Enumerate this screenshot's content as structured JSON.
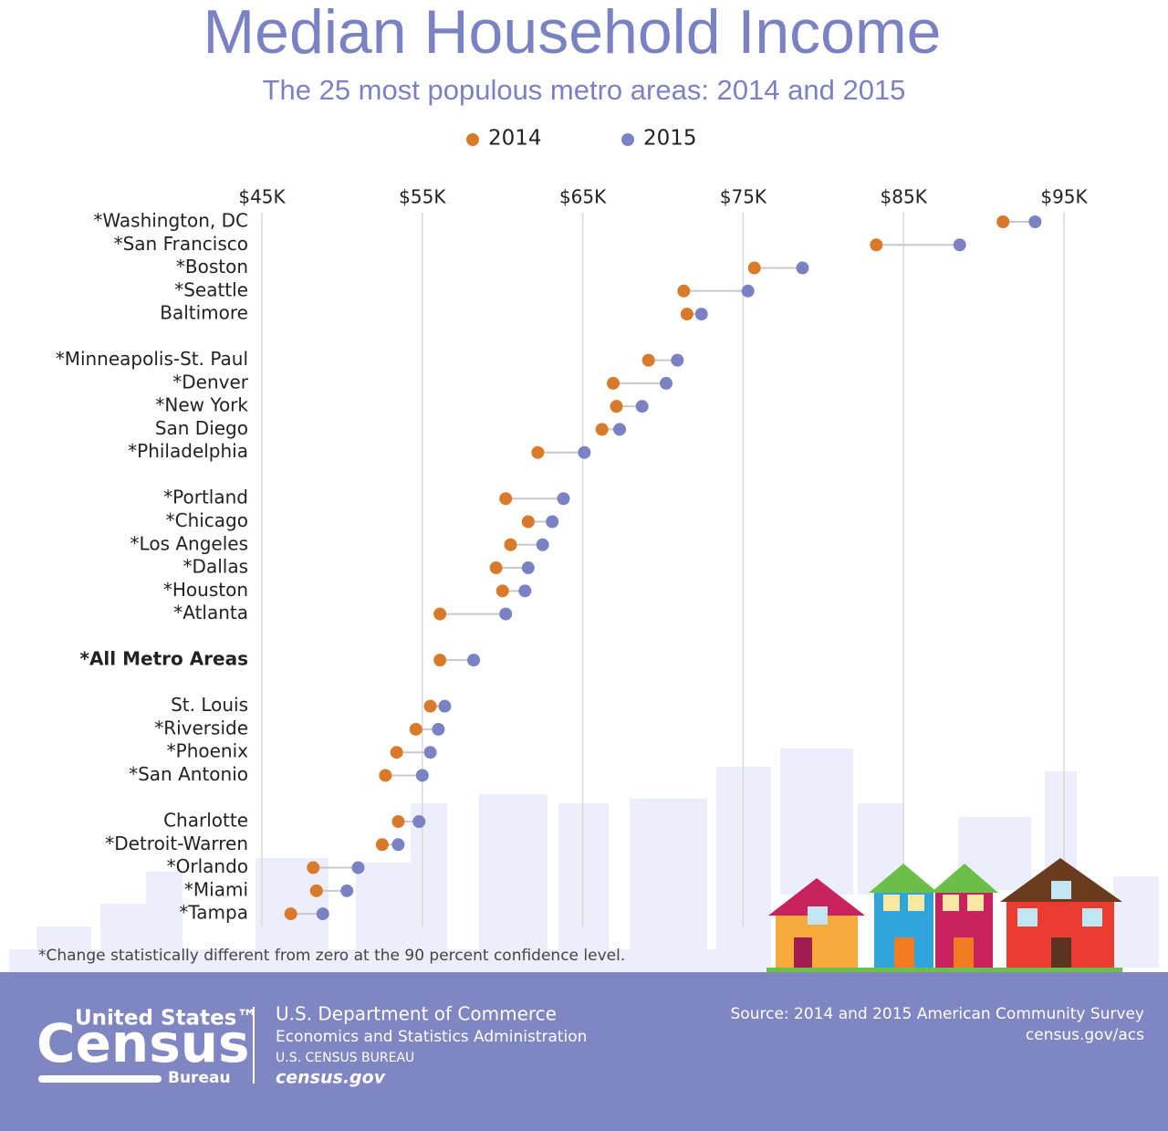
{
  "chart_data": {
    "type": "dumbbell",
    "title": "Median Household Income",
    "subtitle": "The 25 most populous metro areas: 2014 and 2015",
    "categories": [
      "*Washington, DC",
      "*San Francisco",
      "*Boston",
      "*Seattle",
      "Baltimore",
      "*Minneapolis-St. Paul",
      "*Denver",
      "*New York",
      "San Diego",
      "*Philadelphia",
      "*Portland",
      "*Chicago",
      "*Los Angeles",
      "*Dallas",
      "*Houston",
      "*Atlanta",
      "*All Metro Areas",
      "St. Louis",
      "*Riverside",
      "*Phoenix",
      "*San Antonio",
      "Charlotte",
      "*Detroit-Warren",
      "*Orlando",
      "*Miami",
      "*Tampa"
    ],
    "series": [
      {
        "name": "2014",
        "color": "#d97a2b",
        "values": [
          91.2,
          83.3,
          75.7,
          71.3,
          71.5,
          69.1,
          66.9,
          67.1,
          66.2,
          62.2,
          60.2,
          61.6,
          60.5,
          59.6,
          60.0,
          56.1,
          56.1,
          55.5,
          54.6,
          53.4,
          52.7,
          53.5,
          52.5,
          48.2,
          48.4,
          46.8
        ]
      },
      {
        "name": "2015",
        "color": "#7b82c4",
        "values": [
          93.2,
          88.5,
          78.7,
          75.3,
          72.4,
          70.9,
          70.2,
          68.7,
          67.3,
          65.1,
          63.8,
          63.1,
          62.5,
          61.6,
          61.4,
          60.2,
          58.2,
          56.4,
          56.0,
          55.5,
          55.0,
          54.8,
          53.5,
          51.0,
          50.3,
          48.8
        ]
      }
    ],
    "xlim": [
      45,
      95
    ],
    "xticks": [
      {
        "value": 45,
        "label": "$45K"
      },
      {
        "value": 55,
        "label": "$55K"
      },
      {
        "value": 65,
        "label": "$65K"
      },
      {
        "value": 75,
        "label": "$75K"
      },
      {
        "value": 85,
        "label": "$85K"
      },
      {
        "value": 95,
        "label": "$95K"
      }
    ],
    "grid": true,
    "footnote": "*Change statistically different from zero at the 90 percent confidence level."
  },
  "footer": {
    "logo_top": "United States™",
    "logo_main": "Census",
    "logo_bottom": "Bureau",
    "department": "U.S. Department of Commerce",
    "administration": "Economics and Statistics Administration",
    "bureau": "U.S. CENSUS BUREAU",
    "website": "census.gov",
    "source": "Source: 2014 and 2015 American Community Survey",
    "source_url": "census.gov/acs"
  }
}
